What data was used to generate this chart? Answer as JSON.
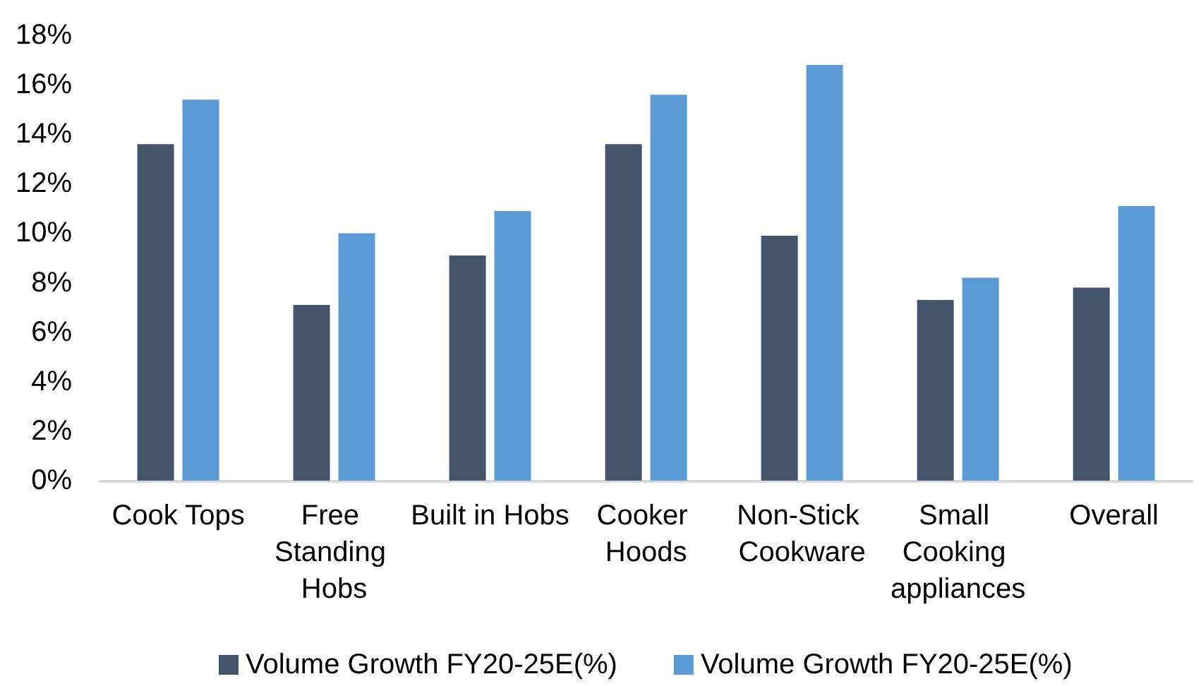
{
  "chart_data": {
    "type": "bar",
    "categories": [
      "Cook Tops",
      "Free Standing Hobs",
      "Built in Hobs",
      "Cooker Hoods",
      "Non-Stick Cookware",
      "Small Cooking appliances",
      "Overall"
    ],
    "series": [
      {
        "name": "Volume Growth FY20-25E(%)",
        "color": "#44546a",
        "values": [
          13.6,
          7.1,
          9.1,
          13.6,
          9.9,
          7.3,
          7.8
        ]
      },
      {
        "name": "Volume Growth FY20-25E(%)",
        "color": "#5b9bd5",
        "values": [
          15.4,
          10.0,
          10.9,
          15.6,
          16.8,
          8.2,
          11.1
        ]
      }
    ],
    "ylim": [
      0,
      18
    ],
    "yticks": [
      {
        "value": 0,
        "label": "0%"
      },
      {
        "value": 2,
        "label": "2%"
      },
      {
        "value": 4,
        "label": "4%"
      },
      {
        "value": 6,
        "label": "6%"
      },
      {
        "value": 8,
        "label": "8%"
      },
      {
        "value": 10,
        "label": "10%"
      },
      {
        "value": 12,
        "label": "12%"
      },
      {
        "value": 14,
        "label": "14%"
      },
      {
        "value": 16,
        "label": "16%"
      },
      {
        "value": 18,
        "label": "18%"
      }
    ],
    "grid": false,
    "legend": "bottom"
  }
}
